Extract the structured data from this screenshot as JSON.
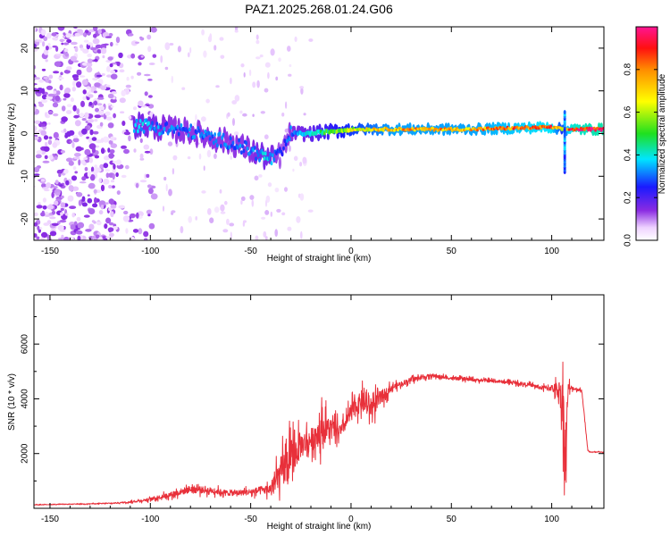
{
  "figure": {
    "title": "PAZ1.2025.268.01.24.G06"
  },
  "chart_data": [
    {
      "type": "heatmap",
      "xlabel": "Height of straight line (km)",
      "ylabel": "Frequency (Hz)",
      "xlim": [
        -158,
        126
      ],
      "ylim": [
        -25,
        25
      ],
      "xticks": [
        -150,
        -100,
        -50,
        0,
        50,
        100
      ],
      "yticks": [
        -20,
        -10,
        0,
        10,
        20
      ],
      "colorbar": {
        "label": "Normalized spectral amplitude",
        "range": [
          0,
          1
        ],
        "ticks": [
          0.0,
          0.2,
          0.4,
          0.6,
          0.8
        ],
        "tick_labels": [
          "0.0",
          "0.2",
          "0.4",
          "0.6",
          "0.8"
        ]
      },
      "ridge": [
        {
          "x": -105,
          "f": 2,
          "a": 0.35
        },
        {
          "x": -90,
          "f": 1,
          "a": 0.3
        },
        {
          "x": -80,
          "f": 0.5,
          "a": 0.3
        },
        {
          "x": -70,
          "f": -1,
          "a": 0.3
        },
        {
          "x": -60,
          "f": -2,
          "a": 0.3
        },
        {
          "x": -50,
          "f": -4,
          "a": 0.3
        },
        {
          "x": -45,
          "f": -5,
          "a": 0.35
        },
        {
          "x": -40,
          "f": -6,
          "a": 0.35
        },
        {
          "x": -35,
          "f": -5,
          "a": 0.25
        },
        {
          "x": -30,
          "f": 0,
          "a": 0.3
        },
        {
          "x": -20,
          "f": 0,
          "a": 0.4
        },
        {
          "x": -10,
          "f": 0.5,
          "a": 0.5
        },
        {
          "x": 0,
          "f": 1,
          "a": 0.6
        },
        {
          "x": 20,
          "f": 1,
          "a": 0.75
        },
        {
          "x": 60,
          "f": 1,
          "a": 0.75
        },
        {
          "x": 100,
          "f": 1.5,
          "a": 0.85
        },
        {
          "x": 105,
          "f": 1,
          "a": 0.6
        },
        {
          "x": 110,
          "f": 1,
          "a": 0.9
        },
        {
          "x": 126,
          "f": 1,
          "a": 0.95
        }
      ]
    },
    {
      "type": "line",
      "xlabel": "Height of straight line (km)",
      "ylabel": "SNR (10 * v/v)",
      "xlim": [
        -158,
        126
      ],
      "ylim": [
        0,
        7800
      ],
      "xticks": [
        -150,
        -100,
        -50,
        0,
        50,
        100
      ],
      "yticks": [
        2000,
        4000,
        6000
      ],
      "series": [
        {
          "name": "SNR",
          "color": "#e8303a",
          "x": [
            -158,
            -140,
            -120,
            -110,
            -100,
            -90,
            -80,
            -70,
            -60,
            -50,
            -40,
            -35,
            -30,
            -25,
            -20,
            -15,
            -10,
            -5,
            0,
            5,
            10,
            20,
            30,
            40,
            50,
            60,
            70,
            80,
            90,
            95,
            100,
            104,
            106,
            107,
            108,
            110,
            115,
            118,
            120,
            126
          ],
          "y": [
            130,
            150,
            180,
            230,
            330,
            500,
            700,
            650,
            550,
            600,
            700,
            1300,
            1800,
            2300,
            2500,
            2900,
            2900,
            2800,
            3500,
            3900,
            3700,
            4400,
            4700,
            4850,
            4750,
            4700,
            4650,
            4600,
            4500,
            4400,
            4400,
            4300,
            3500,
            1500,
            4300,
            4400,
            4300,
            2100,
            2050,
            2050
          ],
          "noise": [
            20,
            25,
            40,
            60,
            120,
            200,
            300,
            250,
            200,
            250,
            400,
            1300,
            1600,
            1000,
            900,
            1300,
            900,
            500,
            700,
            800,
            900,
            250,
            180,
            150,
            120,
            120,
            120,
            120,
            130,
            180,
            250,
            800,
            2600,
            3000,
            700,
            150,
            120,
            40,
            40,
            40
          ]
        }
      ]
    }
  ]
}
